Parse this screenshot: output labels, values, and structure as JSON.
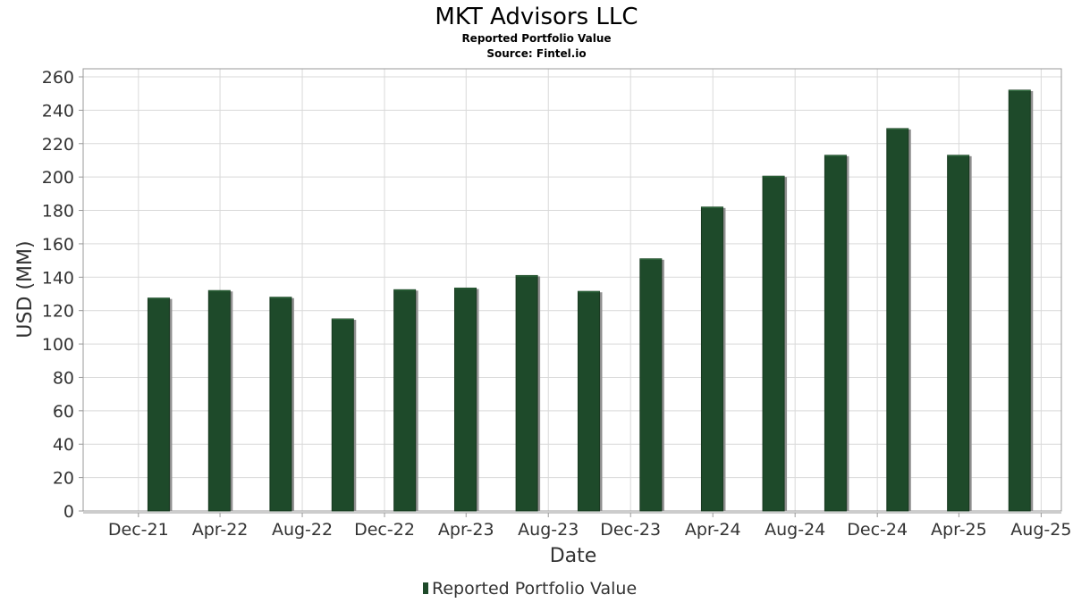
{
  "chart_data": {
    "type": "bar",
    "title": "MKT Advisors LLC",
    "subtitle": "Reported Portfolio Value",
    "source": "Source: Fintel.io",
    "xlabel": "Date",
    "ylabel": "USD (MM)",
    "ylim": [
      0,
      260
    ],
    "yticks": [
      0,
      20,
      40,
      60,
      80,
      100,
      120,
      140,
      160,
      180,
      200,
      220,
      240,
      260
    ],
    "xlim": [
      "2021-09-10",
      "2025-08-31"
    ],
    "xticks": [
      {
        "label": "Dec-21",
        "date": "2021-12-01"
      },
      {
        "label": "Apr-22",
        "date": "2022-04-01"
      },
      {
        "label": "Aug-22",
        "date": "2022-08-01"
      },
      {
        "label": "Dec-22",
        "date": "2022-12-01"
      },
      {
        "label": "Apr-23",
        "date": "2023-04-01"
      },
      {
        "label": "Aug-23",
        "date": "2023-08-01"
      },
      {
        "label": "Dec-23",
        "date": "2023-12-01"
      },
      {
        "label": "Apr-24",
        "date": "2024-04-01"
      },
      {
        "label": "Aug-24",
        "date": "2024-08-01"
      },
      {
        "label": "Dec-24",
        "date": "2024-12-01"
      },
      {
        "label": "Apr-25",
        "date": "2025-04-01"
      },
      {
        "label": "Aug-25",
        "date": "2025-08-01"
      }
    ],
    "grid": true,
    "legend_position": "bottom-center",
    "series": [
      {
        "name": "Reported Portfolio Value",
        "color": "#1e4a2a",
        "x": [
          "2021-12-31",
          "2022-03-31",
          "2022-06-30",
          "2022-09-30",
          "2022-12-31",
          "2023-03-31",
          "2023-06-30",
          "2023-09-30",
          "2023-12-31",
          "2024-03-31",
          "2024-06-30",
          "2024-09-30",
          "2024-12-31",
          "2025-03-31",
          "2025-06-30"
        ],
        "values": [
          127.5,
          132,
          128,
          115,
          132.5,
          133.5,
          141,
          131.5,
          151,
          182,
          200.5,
          213,
          229,
          213,
          252
        ]
      }
    ]
  }
}
